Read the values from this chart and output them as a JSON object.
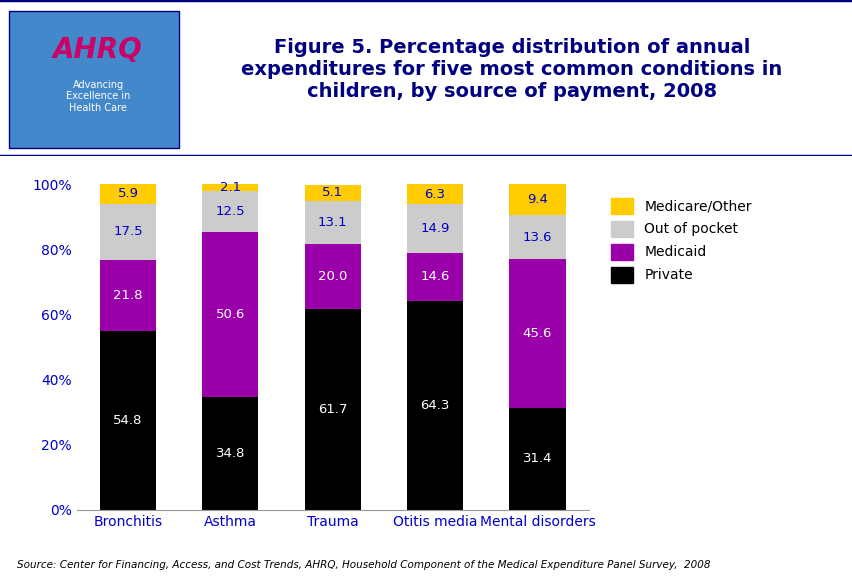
{
  "categories": [
    "Bronchitis",
    "Asthma",
    "Trauma",
    "Otitis media",
    "Mental disorders"
  ],
  "series": {
    "Private": [
      54.8,
      34.8,
      61.7,
      64.3,
      31.4
    ],
    "Medicaid": [
      21.8,
      50.6,
      20.0,
      14.6,
      45.6
    ],
    "Out of pocket": [
      17.5,
      12.5,
      13.1,
      14.9,
      13.6
    ],
    "Medicare/Other": [
      5.9,
      2.1,
      5.1,
      6.3,
      9.4
    ]
  },
  "colors": {
    "Private": "#000000",
    "Medicaid": "#9900AA",
    "Out of pocket": "#CCCCCC",
    "Medicare/Other": "#FFCC00"
  },
  "series_order": [
    "Private",
    "Medicaid",
    "Out of pocket",
    "Medicare/Other"
  ],
  "title_line1": "Figure 5. Percentage distribution of annual",
  "title_line2": "expenditures for five most common conditions in",
  "title_line3": "children, by source of payment, 2008",
  "title_color": "#000080",
  "title_fontsize": 14,
  "ylim": [
    0,
    100
  ],
  "ytick_labels": [
    "0%",
    "20%",
    "40%",
    "60%",
    "80%",
    "100%"
  ],
  "ytick_values": [
    0,
    20,
    40,
    60,
    80,
    100
  ],
  "source_text": "Source: Center for Financing, Access, and Cost Trends, AHRQ, Household Component of the Medical Expenditure Panel Survey,  2008",
  "bar_width": 0.55,
  "background_color": "#FFFFFF",
  "tick_label_color": "#0000CC",
  "legend_order": [
    "Medicare/Other",
    "Out of pocket",
    "Medicaid",
    "Private"
  ],
  "header_bg": "#FFFFFF",
  "header_border_color": "#000080",
  "blue_bar_color": "#000080",
  "logo_box_color": "#4488CC"
}
